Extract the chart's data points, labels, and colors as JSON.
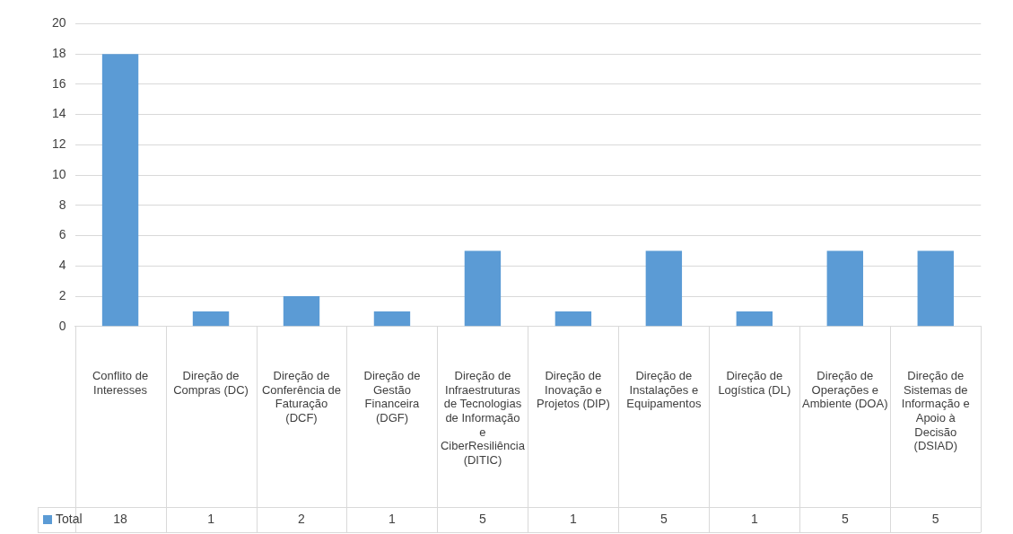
{
  "chart_data": {
    "type": "bar",
    "categories": [
      "Conflito de Interesses",
      "Direção de Compras (DC)",
      "Direção de Conferência de Faturação (DCF)",
      "Direção de Gestão Financeira (DGF)",
      "Direção de Infraestruturas de Tecnologias de Informação e CiberResiliência (DITIC)",
      "Direção de Inovação e Projetos (DIP)",
      "Direção de Instalações e Equipamentos",
      "Direção de Logística (DL)",
      "Direção de Operações e Ambiente (DOA)",
      "Direção de Sistemas de Informação e Apoio à Decisão (DSIAD)"
    ],
    "series": [
      {
        "name": "Total",
        "color": "#5b9bd5",
        "values": [
          18,
          1,
          2,
          1,
          5,
          1,
          5,
          1,
          5,
          5
        ]
      }
    ],
    "ylim": [
      0,
      20
    ],
    "yticks": [
      0,
      2,
      4,
      6,
      8,
      10,
      12,
      14,
      16,
      18,
      20
    ],
    "grid": "y",
    "legend": "bottom",
    "data_labels": true
  }
}
